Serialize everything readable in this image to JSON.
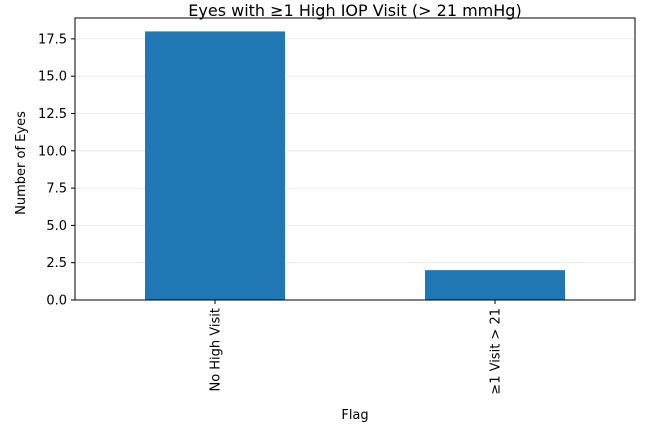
{
  "chart_data": {
    "type": "bar",
    "title": "Eyes with ≥1 High IOP Visit (> 21 mmHg)",
    "xlabel": "Flag",
    "ylabel": "Number of Eyes",
    "categories": [
      "No High Visit",
      "≥1 Visit > 21"
    ],
    "values": [
      18,
      2
    ],
    "ylim": [
      0,
      18.9
    ],
    "yticks": [
      0.0,
      2.5,
      5.0,
      7.5,
      10.0,
      12.5,
      15.0,
      17.5
    ],
    "ytick_labels": [
      "0.0",
      "2.5",
      "5.0",
      "7.5",
      "10.0",
      "12.5",
      "15.0",
      "17.5"
    ],
    "grid": "horizontal",
    "legend": "none",
    "bar_color": "#1f77b4",
    "grid_color": "#e6e6e6",
    "frame_color": "#000000"
  }
}
